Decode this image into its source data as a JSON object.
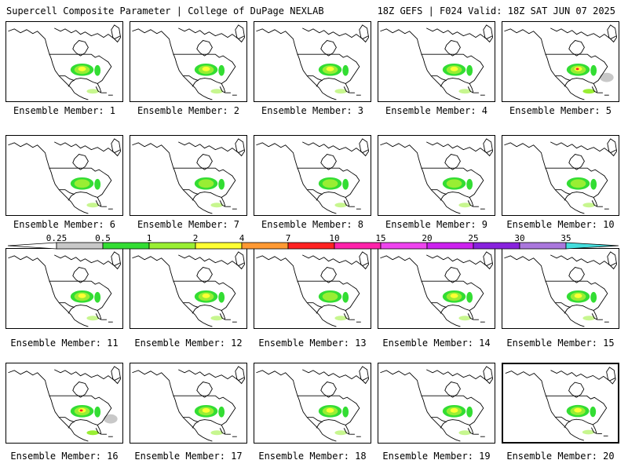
{
  "header": {
    "title_left": "Supercell Composite Parameter | College of DuPage NEXLAB",
    "title_right": "18Z GEFS | F024 Valid: 18Z SAT JUN 07 2025"
  },
  "colorbar": {
    "ticks": [
      "0.25",
      "0.5",
      "1",
      "2",
      "4",
      "7",
      "10",
      "15",
      "20",
      "25",
      "30",
      "35"
    ],
    "colors": [
      "#ffffff",
      "#c8c8c8",
      "#33dd33",
      "#99ee33",
      "#ffff33",
      "#ff9933",
      "#ff2222",
      "#ff22aa",
      "#ee44ee",
      "#cc22ee",
      "#8822dd",
      "#aa77dd",
      "#44dddd"
    ]
  },
  "panel_label_prefix": "Ensemble Member: ",
  "members": [
    {
      "label": "Ensemble Member: 1",
      "intensity": 2
    },
    {
      "label": "Ensemble Member: 2",
      "intensity": 2
    },
    {
      "label": "Ensemble Member: 3",
      "intensity": 2
    },
    {
      "label": "Ensemble Member: 4",
      "intensity": 2
    },
    {
      "label": "Ensemble Member: 5",
      "intensity": 3
    },
    {
      "label": "Ensemble Member: 6",
      "intensity": 1
    },
    {
      "label": "Ensemble Member: 7",
      "intensity": 1
    },
    {
      "label": "Ensemble Member: 8",
      "intensity": 1
    },
    {
      "label": "Ensemble Member: 9",
      "intensity": 1
    },
    {
      "label": "Ensemble Member: 10",
      "intensity": 1
    },
    {
      "label": "Ensemble Member: 11",
      "intensity": 2
    },
    {
      "label": "Ensemble Member: 12",
      "intensity": 2
    },
    {
      "label": "Ensemble Member: 13",
      "intensity": 1
    },
    {
      "label": "Ensemble Member: 14",
      "intensity": 2
    },
    {
      "label": "Ensemble Member: 15",
      "intensity": 2
    },
    {
      "label": "Ensemble Member: 16",
      "intensity": 3
    },
    {
      "label": "Ensemble Member: 17",
      "intensity": 2
    },
    {
      "label": "Ensemble Member: 18",
      "intensity": 2
    },
    {
      "label": "Ensemble Member: 19",
      "intensity": 2
    },
    {
      "label": "Ensemble Member: 20",
      "intensity": 2,
      "selected": true
    }
  ]
}
